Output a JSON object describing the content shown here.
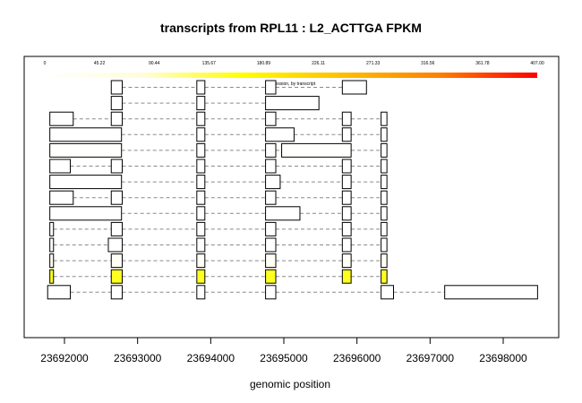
{
  "chart_data": {
    "type": "gene-transcript-structure",
    "title": "transcripts from RPL11 : L2_ACTTGA FPKM",
    "xlabel": "genomic position",
    "x_ticks": [
      23692000,
      23693000,
      23694000,
      23695000,
      23696000,
      23697000,
      23698000
    ],
    "x_tick_labels": [
      "23692000",
      "23693000",
      "23694000",
      "23695000",
      "23696000",
      "23697000",
      "23698000"
    ],
    "xlim": [
      23691500,
      23698750
    ],
    "grid": false,
    "color_scale": {
      "label": "expression, by transcript",
      "min": 0,
      "max": 407,
      "ticks": [
        "0",
        "45.22",
        "90.44",
        "135.67",
        "180.89",
        "226.11",
        "271.33",
        "316.56",
        "361.78",
        "407.00"
      ],
      "colors": [
        "#ffffff",
        "#fffdd8",
        "#ffff00",
        "#ffc000",
        "#ff8000",
        "#ff0000"
      ]
    },
    "transcripts": [
      {
        "fpkm": 0,
        "exons": [
          [
            23692640,
            23692790
          ],
          [
            23693810,
            23693920
          ],
          [
            23694750,
            23694890
          ],
          [
            23695800,
            23696130
          ]
        ]
      },
      {
        "fpkm": 0,
        "exons": [
          [
            23692640,
            23692790
          ],
          [
            23693810,
            23693920
          ],
          [
            23694750,
            23695480
          ]
        ]
      },
      {
        "fpkm": 0,
        "exons": [
          [
            23691800,
            23692120
          ],
          [
            23692640,
            23692790
          ],
          [
            23693810,
            23693920
          ],
          [
            23694750,
            23694890
          ],
          [
            23695800,
            23695920
          ],
          [
            23696330,
            23696410
          ]
        ]
      },
      {
        "fpkm": 0,
        "exons": [
          [
            23691800,
            23692780
          ],
          [
            23693810,
            23693920
          ],
          [
            23694750,
            23695140
          ],
          [
            23695800,
            23695920
          ],
          [
            23696330,
            23696410
          ]
        ]
      },
      {
        "fpkm": 5,
        "exons": [
          [
            23691800,
            23692780
          ],
          [
            23693810,
            23693920
          ],
          [
            23694750,
            23694890
          ],
          [
            23694970,
            23695920
          ],
          [
            23696330,
            23696410
          ]
        ]
      },
      {
        "fpkm": 0,
        "exons": [
          [
            23691800,
            23692080
          ],
          [
            23692640,
            23692790
          ],
          [
            23693810,
            23693920
          ],
          [
            23694750,
            23694890
          ],
          [
            23695800,
            23695920
          ],
          [
            23696330,
            23696410
          ]
        ]
      },
      {
        "fpkm": 0,
        "exons": [
          [
            23691800,
            23692780
          ],
          [
            23693810,
            23693920
          ],
          [
            23694750,
            23694950
          ],
          [
            23695800,
            23695920
          ],
          [
            23696330,
            23696410
          ]
        ]
      },
      {
        "fpkm": 0,
        "exons": [
          [
            23691800,
            23692120
          ],
          [
            23692640,
            23692790
          ],
          [
            23693810,
            23693920
          ],
          [
            23694750,
            23694890
          ],
          [
            23695800,
            23695920
          ],
          [
            23696330,
            23696410
          ]
        ]
      },
      {
        "fpkm": 0,
        "exons": [
          [
            23691800,
            23692780
          ],
          [
            23693810,
            23693920
          ],
          [
            23694750,
            23695220
          ],
          [
            23695800,
            23695920
          ],
          [
            23696330,
            23696410
          ]
        ]
      },
      {
        "fpkm": 0,
        "exons": [
          [
            23691800,
            23691850
          ],
          [
            23692640,
            23692790
          ],
          [
            23693810,
            23693920
          ],
          [
            23694750,
            23694890
          ],
          [
            23695800,
            23695920
          ],
          [
            23696330,
            23696410
          ]
        ]
      },
      {
        "fpkm": 0,
        "exons": [
          [
            23691800,
            23691850
          ],
          [
            23692600,
            23692790
          ],
          [
            23693810,
            23693920
          ],
          [
            23694750,
            23694890
          ],
          [
            23695800,
            23695920
          ],
          [
            23696330,
            23696410
          ]
        ]
      },
      {
        "fpkm": 20,
        "exons": [
          [
            23691800,
            23691850
          ],
          [
            23692640,
            23692790
          ],
          [
            23693810,
            23693920
          ],
          [
            23694750,
            23694890
          ],
          [
            23695800,
            23695920
          ],
          [
            23696330,
            23696410
          ]
        ]
      },
      {
        "fpkm": 150,
        "exons": [
          [
            23691800,
            23691850
          ],
          [
            23692640,
            23692790
          ],
          [
            23693810,
            23693920
          ],
          [
            23694750,
            23694890
          ],
          [
            23695800,
            23695920
          ],
          [
            23696330,
            23696410
          ]
        ]
      },
      {
        "fpkm": 0,
        "exons": [
          [
            23691770,
            23692080
          ],
          [
            23692640,
            23692790
          ],
          [
            23693810,
            23693920
          ],
          [
            23694750,
            23694890
          ],
          [
            23696330,
            23696500
          ],
          [
            23697200,
            23698470
          ]
        ]
      }
    ]
  }
}
